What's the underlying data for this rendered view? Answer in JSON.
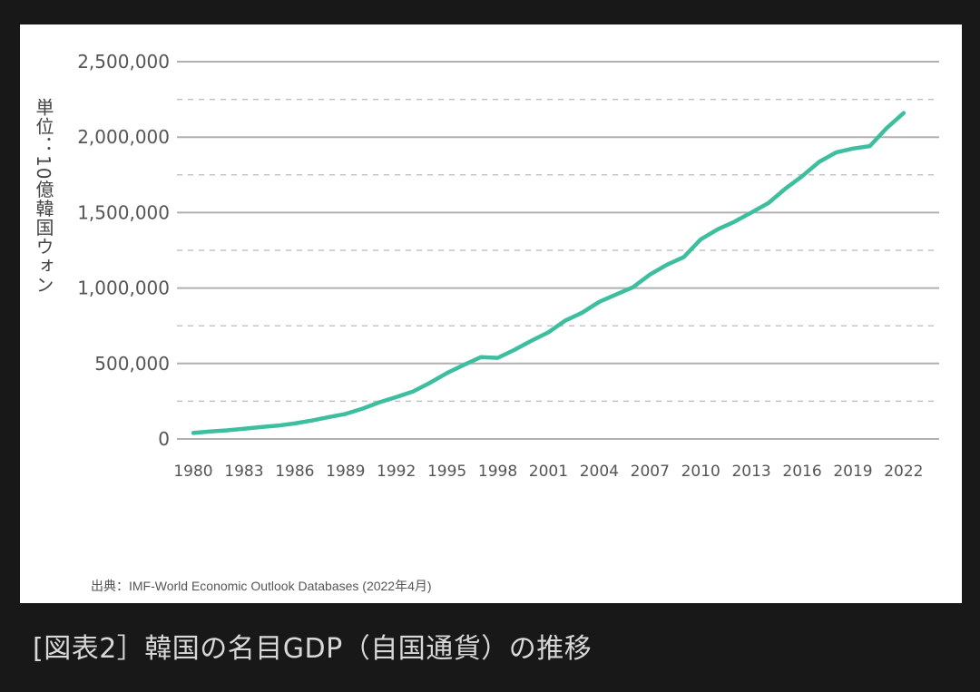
{
  "chart_data": {
    "type": "line",
    "title": "",
    "ylabel": "単位：10億韓国ウォン",
    "xlabel": "",
    "ylim": [
      0,
      2500000
    ],
    "yticks": [
      0,
      500000,
      1000000,
      1500000,
      2000000,
      2500000
    ],
    "ytick_labels": [
      "0",
      "500,000",
      "1,000,000",
      "1,500,000",
      "2,000,000",
      "2,500,000"
    ],
    "xtick_labels": [
      "1980",
      "1983",
      "1986",
      "1989",
      "1992",
      "1995",
      "1998",
      "2001",
      "2004",
      "2007",
      "2010",
      "2013",
      "2016",
      "2019",
      "2022"
    ],
    "grid": true,
    "line_color": "#3dbf9f",
    "series": [
      {
        "name": "韓国の名目GDP",
        "x": [
          1980,
          1981,
          1982,
          1983,
          1984,
          1985,
          1986,
          1987,
          1988,
          1989,
          1990,
          1991,
          1992,
          1993,
          1994,
          1995,
          1996,
          1997,
          1998,
          1999,
          2000,
          2001,
          2002,
          2003,
          2004,
          2005,
          2006,
          2007,
          2008,
          2009,
          2010,
          2011,
          2012,
          2013,
          2014,
          2015,
          2016,
          2017,
          2018,
          2019,
          2020,
          2021,
          2022
        ],
        "values": [
          39700,
          49700,
          57300,
          68100,
          78600,
          88100,
          102900,
          121700,
          145000,
          165800,
          200600,
          242500,
          277500,
          315200,
          372500,
          437000,
          490900,
          542000,
          537200,
          591500,
          651600,
          707000,
          784700,
          837400,
          908400,
          957400,
          1005600,
          1089700,
          1154200,
          1205300,
          1322600,
          1388900,
          1440100,
          1500800,
          1562900,
          1658000,
          1740800,
          1835700,
          1898200,
          1924500,
          1940700,
          2060000,
          2160000
        ]
      }
    ]
  },
  "source": "出典：IMF-World Economic Outlook Databases (2022年4月)",
  "caption": "[図表2］韓国の名目GDP（自国通貨）の推移"
}
